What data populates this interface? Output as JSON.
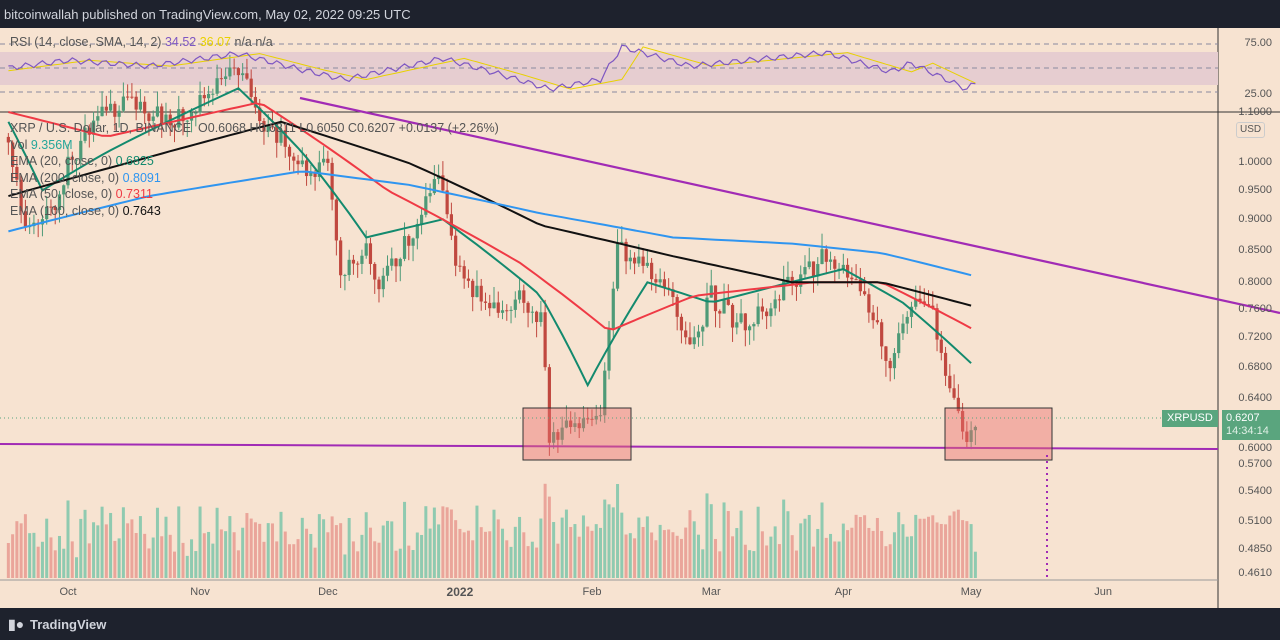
{
  "header": {
    "text": "bitcoinwallah published on TradingView.com, May 02, 2022 09:25 UTC"
  },
  "footer": {
    "brand": "TradingView"
  },
  "rsi_legend": {
    "label": "RSI (14, close, SMA, 14, 2)",
    "rsi": "34.52",
    "sma": "36.07",
    "na1": "n/a",
    "na2": "n/a",
    "rsi_color": "#7e57c2",
    "sma_color": "#e8d100"
  },
  "legend": {
    "symbol": "XRP / U.S. Dollar, 1D, BINANCE",
    "ohlc": "O0.6068  H0.6311  L0.6050  C0.6207  +0.0137 (+2.26%)",
    "vol_label": "Vol",
    "vol_value": "9.356M",
    "ema20_label": "EMA (20, close, 0)",
    "ema20_value": "0.6825",
    "ema200_label": "EMA (200, close, 0)",
    "ema200_value": "0.8091",
    "ema50_label": "EMA (50, close, 0)",
    "ema50_value": "0.7311",
    "ema100_label": "EMA (100, close, 0)",
    "ema100_value": "0.7643"
  },
  "price_tag": {
    "symbol": "XRPUSD",
    "price": "0.6207",
    "countdown": "14:34:14"
  },
  "currency": "USD",
  "chart_data": {
    "type": "candlestick",
    "scale": "log",
    "ylim": [
      0.461,
      1.1
    ],
    "rsi_axis": [
      "75.00",
      "25.00"
    ],
    "y_ticks": [
      "1.1000",
      "1.0000",
      "0.9500",
      "0.9000",
      "0.8500",
      "0.8000",
      "0.7600",
      "0.7200",
      "0.6800",
      "0.6400",
      "0.6000",
      "0.5700",
      "0.5400",
      "0.5100",
      "0.4850",
      "0.4610"
    ],
    "x_ticks": [
      {
        "label": "Oct",
        "date": "2021-10-01"
      },
      {
        "label": "Nov",
        "date": "2021-11-01"
      },
      {
        "label": "Dec",
        "date": "2021-12-01"
      },
      {
        "label": "2022",
        "date": "2022-01-01"
      },
      {
        "label": "Feb",
        "date": "2022-02-01"
      },
      {
        "label": "Mar",
        "date": "2022-03-01"
      },
      {
        "label": "Apr",
        "date": "2022-04-01"
      },
      {
        "label": "May",
        "date": "2022-05-01"
      },
      {
        "label": "Jun",
        "date": "2022-06-01"
      }
    ],
    "start_date": "2021-09-17",
    "end_date": "2022-05-02",
    "close_anchors": [
      [
        "2021-09-17",
        1.05
      ],
      [
        "2021-09-21",
        0.88
      ],
      [
        "2021-09-28",
        0.93
      ],
      [
        "2021-10-01",
        1.0
      ],
      [
        "2021-10-07",
        1.08
      ],
      [
        "2021-10-15",
        1.12
      ],
      [
        "2021-10-25",
        1.08
      ],
      [
        "2021-11-01",
        1.12
      ],
      [
        "2021-11-10",
        1.2
      ],
      [
        "2021-11-15",
        1.08
      ],
      [
        "2021-11-20",
        1.05
      ],
      [
        "2021-11-26",
        0.98
      ],
      [
        "2021-12-01",
        1.0
      ],
      [
        "2021-12-04",
        0.82
      ],
      [
        "2021-12-10",
        0.85
      ],
      [
        "2021-12-13",
        0.8
      ],
      [
        "2021-12-20",
        0.87
      ],
      [
        "2021-12-27",
        0.97
      ],
      [
        "2021-12-31",
        0.83
      ],
      [
        "2022-01-05",
        0.78
      ],
      [
        "2022-01-10",
        0.75
      ],
      [
        "2022-01-15",
        0.78
      ],
      [
        "2022-01-20",
        0.75
      ],
      [
        "2022-01-22",
        0.6
      ],
      [
        "2022-01-28",
        0.61
      ],
      [
        "2022-02-03",
        0.62
      ],
      [
        "2022-02-07",
        0.85
      ],
      [
        "2022-02-12",
        0.83
      ],
      [
        "2022-02-20",
        0.78
      ],
      [
        "2022-02-24",
        0.7
      ],
      [
        "2022-03-01",
        0.78
      ],
      [
        "2022-03-07",
        0.74
      ],
      [
        "2022-03-14",
        0.76
      ],
      [
        "2022-03-20",
        0.8
      ],
      [
        "2022-03-28",
        0.84
      ],
      [
        "2022-04-01",
        0.82
      ],
      [
        "2022-04-07",
        0.76
      ],
      [
        "2022-04-12",
        0.69
      ],
      [
        "2022-04-17",
        0.77
      ],
      [
        "2022-04-22",
        0.75
      ],
      [
        "2022-04-26",
        0.65
      ],
      [
        "2022-04-30",
        0.59
      ],
      [
        "2022-05-02",
        0.6207
      ]
    ],
    "series": [
      {
        "name": "EMA 20",
        "color": "#138a6e",
        "anchors": [
          [
            "2021-09-17",
            1.08
          ],
          [
            "2021-09-25",
            0.95
          ],
          [
            "2021-10-10",
            1.02
          ],
          [
            "2021-11-10",
            1.15
          ],
          [
            "2021-11-25",
            1.02
          ],
          [
            "2021-12-10",
            0.87
          ],
          [
            "2021-12-28",
            0.9
          ],
          [
            "2022-01-20",
            0.78
          ],
          [
            "2022-01-31",
            0.66
          ],
          [
            "2022-02-14",
            0.8
          ],
          [
            "2022-03-01",
            0.77
          ],
          [
            "2022-04-01",
            0.82
          ],
          [
            "2022-04-15",
            0.77
          ],
          [
            "2022-05-02",
            0.6825
          ]
        ]
      },
      {
        "name": "EMA 50",
        "color": "#ef3a45",
        "anchors": [
          [
            "2021-09-17",
            1.1
          ],
          [
            "2021-10-10",
            1.05
          ],
          [
            "2021-11-15",
            1.12
          ],
          [
            "2021-12-15",
            0.95
          ],
          [
            "2022-01-15",
            0.83
          ],
          [
            "2022-02-05",
            0.73
          ],
          [
            "2022-02-25",
            0.78
          ],
          [
            "2022-03-25",
            0.8
          ],
          [
            "2022-04-10",
            0.8
          ],
          [
            "2022-05-02",
            0.7311
          ]
        ]
      },
      {
        "name": "EMA 100",
        "color": "#111111",
        "anchors": [
          [
            "2021-09-17",
            0.94
          ],
          [
            "2021-10-15",
            1.0
          ],
          [
            "2021-11-20",
            1.08
          ],
          [
            "2021-12-20",
            1.0
          ],
          [
            "2022-01-20",
            0.89
          ],
          [
            "2022-02-20",
            0.84
          ],
          [
            "2022-03-20",
            0.8
          ],
          [
            "2022-04-10",
            0.8
          ],
          [
            "2022-05-02",
            0.7643
          ]
        ]
      },
      {
        "name": "EMA 200",
        "color": "#2f95f0",
        "anchors": [
          [
            "2021-09-17",
            0.88
          ],
          [
            "2021-10-20",
            0.94
          ],
          [
            "2021-11-25",
            0.985
          ],
          [
            "2021-12-20",
            0.96
          ],
          [
            "2022-01-20",
            0.91
          ],
          [
            "2022-02-20",
            0.87
          ],
          [
            "2022-03-20",
            0.86
          ],
          [
            "2022-04-10",
            0.845
          ],
          [
            "2022-05-02",
            0.8091
          ]
        ]
      }
    ],
    "rsi_anchors": [
      [
        "2021-09-17",
        50
      ],
      [
        "2021-10-01",
        58
      ],
      [
        "2021-10-20",
        52
      ],
      [
        "2021-11-10",
        65
      ],
      [
        "2021-11-25",
        48
      ],
      [
        "2021-12-05",
        38
      ],
      [
        "2021-12-28",
        60
      ],
      [
        "2022-01-10",
        44
      ],
      [
        "2022-01-22",
        28
      ],
      [
        "2022-02-03",
        38
      ],
      [
        "2022-02-08",
        72
      ],
      [
        "2022-02-24",
        52
      ],
      [
        "2022-03-28",
        66
      ],
      [
        "2022-04-12",
        46
      ],
      [
        "2022-04-17",
        55
      ],
      [
        "2022-04-30",
        28
      ],
      [
        "2022-05-02",
        34.52
      ]
    ],
    "annotations": {
      "support_level": 0.588,
      "resistance_trendline": "descending",
      "boxes": [
        "2022-01-21 to 2022-02-05",
        "2022-04-24 to 2022-05-18"
      ]
    }
  }
}
